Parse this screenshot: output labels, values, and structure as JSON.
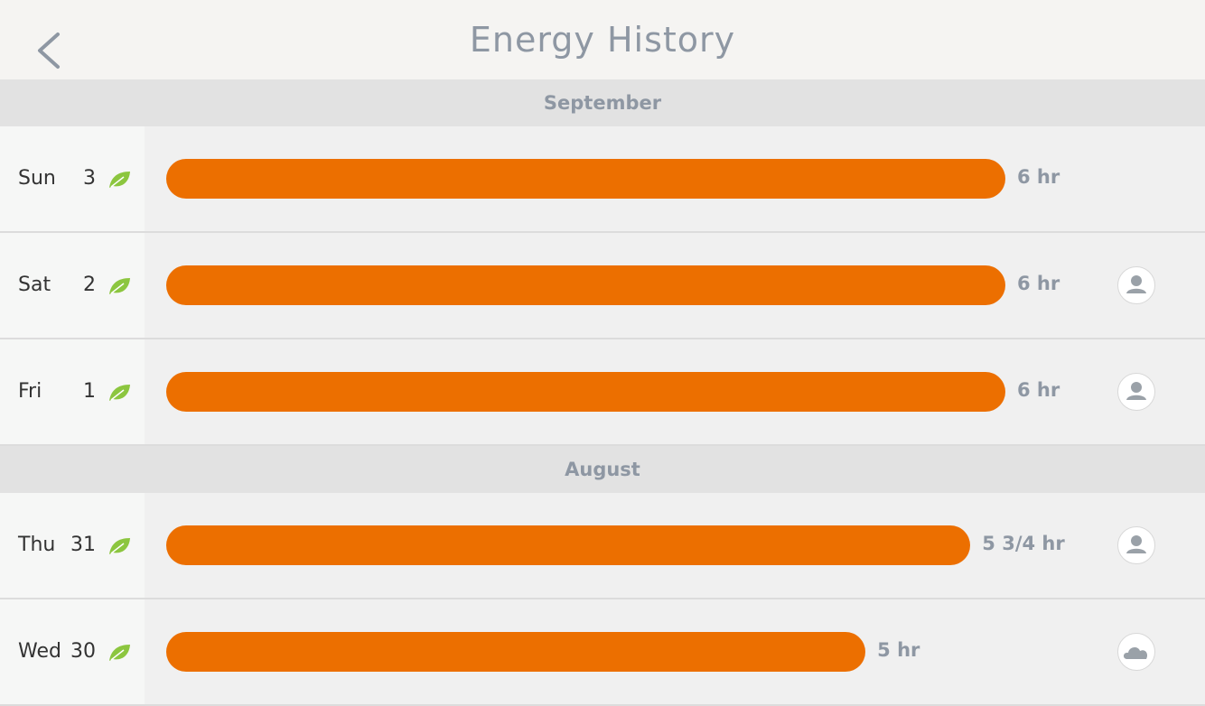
{
  "header": {
    "title": "Energy History"
  },
  "sections": [
    {
      "month": "September",
      "days": [
        {
          "weekday": "Sun",
          "day": 3,
          "hours": 6,
          "hours_label": "6 hr"
        },
        {
          "weekday": "Sat",
          "day": 2,
          "hours": 6,
          "hours_label": "6 hr",
          "icon": "person"
        },
        {
          "weekday": "Fri",
          "day": 1,
          "hours": 6,
          "hours_label": "6 hr",
          "icon": "person"
        }
      ]
    },
    {
      "month": "August",
      "days": [
        {
          "weekday": "Thu",
          "day": 31,
          "hours": 5.75,
          "hours_label": "5 3/4 hr",
          "icon": "person"
        },
        {
          "weekday": "Wed",
          "day": 30,
          "hours": 5,
          "hours_label": "5 hr",
          "icon": "cloud"
        }
      ]
    }
  ]
}
